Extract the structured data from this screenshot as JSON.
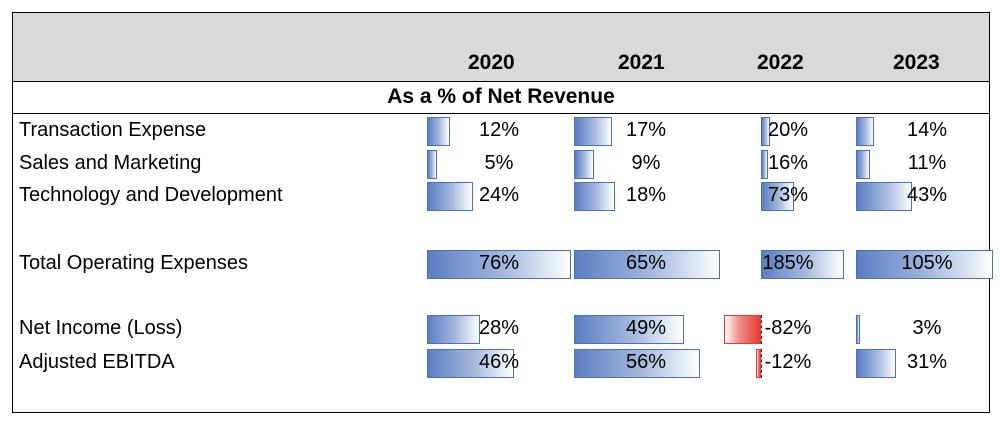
{
  "years": [
    "2020",
    "2021",
    "2022",
    "2023"
  ],
  "subtitle": "As a % of Net Revenue",
  "rows": [
    {
      "label": "Transaction Expense",
      "values": [
        12,
        17,
        20,
        14
      ],
      "display": [
        "12%",
        "17%",
        "20%",
        "14%"
      ]
    },
    {
      "label": "Sales and Marketing",
      "values": [
        5,
        9,
        16,
        11
      ],
      "display": [
        "5%",
        "9%",
        "16%",
        "11%"
      ]
    },
    {
      "label": "Technology and Development",
      "values": [
        24,
        18,
        73,
        43
      ],
      "display": [
        "24%",
        "18%",
        "73%",
        "43%"
      ]
    },
    {
      "label": "Total Operating Expenses",
      "values": [
        76,
        65,
        185,
        105
      ],
      "display": [
        "76%",
        "65%",
        "185%",
        "105%"
      ]
    },
    {
      "label": "Net Income (Loss)",
      "values": [
        28,
        49,
        -82,
        3
      ],
      "display": [
        "28%",
        "49%",
        "-82%",
        "3%"
      ]
    },
    {
      "label": "Adjusted EBITDA",
      "values": [
        46,
        56,
        -12,
        31
      ],
      "display": [
        "46%",
        "56%",
        "-12%",
        "31%"
      ]
    }
  ],
  "colors": {
    "header_bg": "#d9d9d9",
    "positive_bar": "#5a7ec2",
    "negative_bar": "#e53b34"
  }
}
